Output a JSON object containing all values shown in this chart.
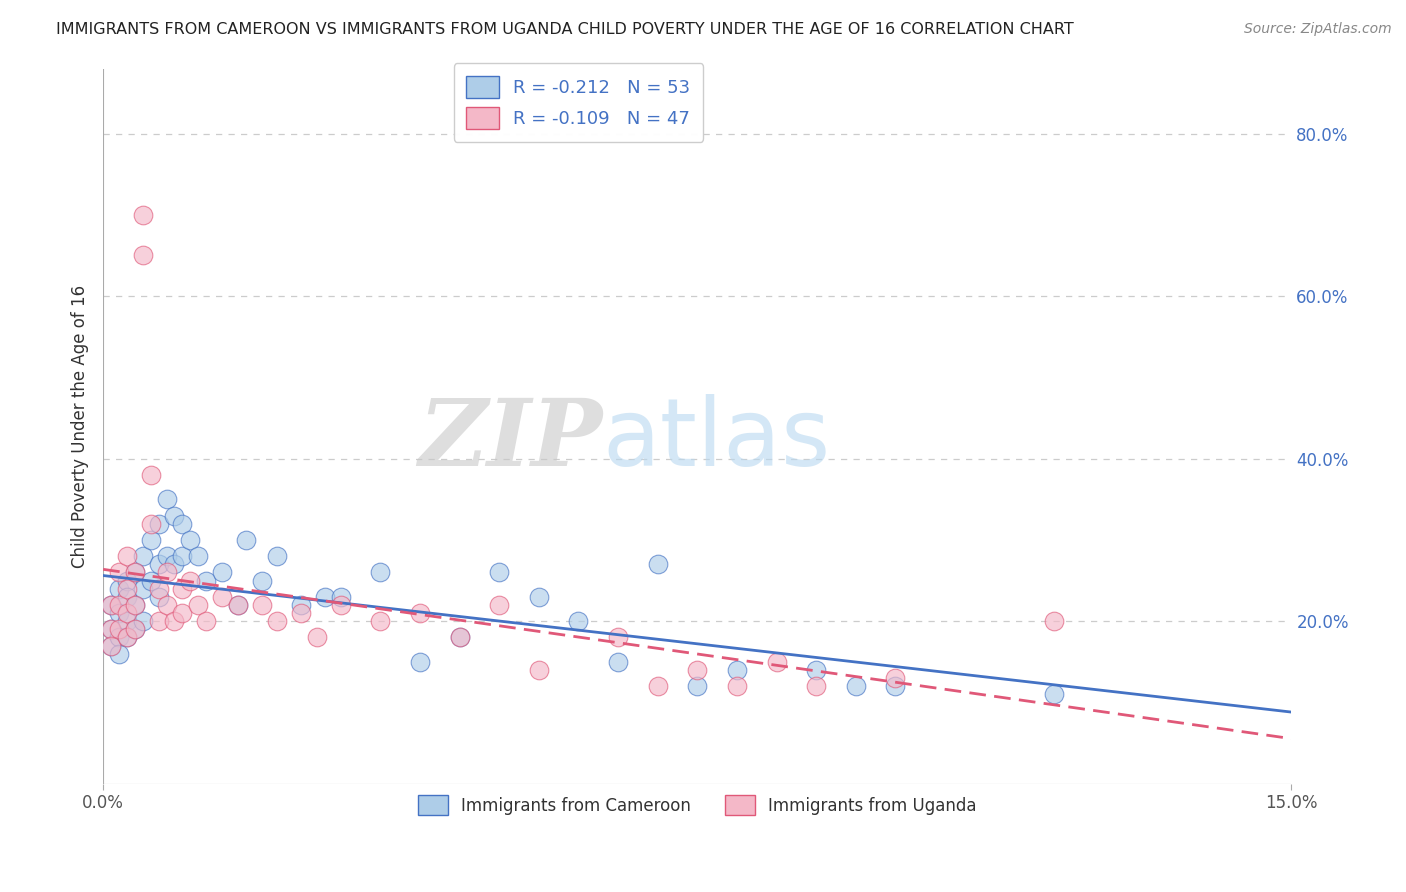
{
  "title": "IMMIGRANTS FROM CAMEROON VS IMMIGRANTS FROM UGANDA CHILD POVERTY UNDER THE AGE OF 16 CORRELATION CHART",
  "source": "Source: ZipAtlas.com",
  "ylabel": "Child Poverty Under the Age of 16",
  "xlabel": "",
  "xlim": [
    0.0,
    0.15
  ],
  "ylim": [
    0.0,
    0.88
  ],
  "yticks_right": [
    0.2,
    0.4,
    0.6,
    0.8
  ],
  "ytick_labels_right": [
    "20.0%",
    "40.0%",
    "60.0%",
    "80.0%"
  ],
  "cameroon_color": "#aecde8",
  "cameroon_color_line": "#4472c4",
  "uganda_color": "#f4b8c8",
  "uganda_color_line": "#e05878",
  "cameroon_R": -0.212,
  "cameroon_N": 53,
  "uganda_R": -0.109,
  "uganda_N": 47,
  "legend_label_cameroon": "Immigrants from Cameroon",
  "legend_label_uganda": "Immigrants from Uganda",
  "background_color": "#ffffff",
  "grid_color": "#cccccc",
  "watermark_zip": "ZIP",
  "watermark_atlas": "atlas",
  "cameroon_x": [
    0.001,
    0.001,
    0.001,
    0.002,
    0.002,
    0.002,
    0.002,
    0.003,
    0.003,
    0.003,
    0.003,
    0.004,
    0.004,
    0.004,
    0.005,
    0.005,
    0.005,
    0.006,
    0.006,
    0.007,
    0.007,
    0.007,
    0.008,
    0.008,
    0.009,
    0.009,
    0.01,
    0.01,
    0.011,
    0.012,
    0.013,
    0.015,
    0.017,
    0.018,
    0.02,
    0.022,
    0.025,
    0.028,
    0.03,
    0.035,
    0.04,
    0.045,
    0.05,
    0.055,
    0.06,
    0.065,
    0.07,
    0.075,
    0.08,
    0.09,
    0.095,
    0.1,
    0.12
  ],
  "cameroon_y": [
    0.22,
    0.19,
    0.17,
    0.24,
    0.21,
    0.18,
    0.16,
    0.25,
    0.2,
    0.23,
    0.18,
    0.26,
    0.22,
    0.19,
    0.28,
    0.24,
    0.2,
    0.3,
    0.25,
    0.32,
    0.27,
    0.23,
    0.35,
    0.28,
    0.33,
    0.27,
    0.32,
    0.28,
    0.3,
    0.28,
    0.25,
    0.26,
    0.22,
    0.3,
    0.25,
    0.28,
    0.22,
    0.23,
    0.23,
    0.26,
    0.15,
    0.18,
    0.26,
    0.23,
    0.2,
    0.15,
    0.27,
    0.12,
    0.14,
    0.14,
    0.12,
    0.12,
    0.11
  ],
  "uganda_x": [
    0.001,
    0.001,
    0.001,
    0.002,
    0.002,
    0.002,
    0.003,
    0.003,
    0.003,
    0.003,
    0.004,
    0.004,
    0.004,
    0.005,
    0.005,
    0.006,
    0.006,
    0.007,
    0.007,
    0.008,
    0.008,
    0.009,
    0.01,
    0.01,
    0.011,
    0.012,
    0.013,
    0.015,
    0.017,
    0.02,
    0.022,
    0.025,
    0.027,
    0.03,
    0.035,
    0.04,
    0.045,
    0.05,
    0.055,
    0.065,
    0.07,
    0.075,
    0.08,
    0.085,
    0.09,
    0.1,
    0.12
  ],
  "uganda_y": [
    0.22,
    0.19,
    0.17,
    0.26,
    0.22,
    0.19,
    0.28,
    0.24,
    0.21,
    0.18,
    0.26,
    0.22,
    0.19,
    0.7,
    0.65,
    0.38,
    0.32,
    0.24,
    0.2,
    0.26,
    0.22,
    0.2,
    0.24,
    0.21,
    0.25,
    0.22,
    0.2,
    0.23,
    0.22,
    0.22,
    0.2,
    0.21,
    0.18,
    0.22,
    0.2,
    0.21,
    0.18,
    0.22,
    0.14,
    0.18,
    0.12,
    0.14,
    0.12,
    0.15,
    0.12,
    0.13,
    0.2
  ]
}
